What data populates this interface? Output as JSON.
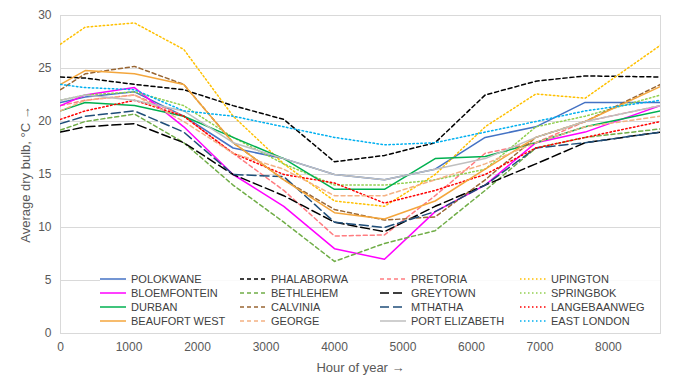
{
  "chart_data": {
    "type": "line",
    "x_label": "Hour of year",
    "y_label": "Average dry bulb, °C",
    "x": [
      0,
      360,
      1080,
      1800,
      2520,
      3260,
      4000,
      4730,
      5470,
      6200,
      6940,
      7660,
      8760
    ],
    "xlim": [
      0,
      8760
    ],
    "xticks": [
      0,
      1000,
      2000,
      3000,
      4000,
      5000,
      6000,
      7000,
      8000
    ],
    "ylim": [
      0,
      30
    ],
    "yticks": [
      0,
      5,
      10,
      15,
      20,
      25,
      30
    ],
    "grid": true,
    "legend": "bottom",
    "series": [
      {
        "name": "POLOKWANE",
        "color": "#4472c4",
        "line_style": "solid",
        "values": [
          21.8,
          22.3,
          22.8,
          20.5,
          17.5,
          16.5,
          15,
          14.5,
          15.5,
          18.5,
          19.5,
          21.8,
          21.8
        ]
      },
      {
        "name": "PHALABORWA",
        "color": "#000000",
        "line_style": "dashed",
        "values": [
          24.2,
          24.1,
          23.5,
          23,
          21.5,
          20.2,
          16.2,
          16.8,
          18,
          22.5,
          23.8,
          24.3,
          24.2
        ]
      },
      {
        "name": "PRETORIA",
        "color": "#ff7c80",
        "line_style": "dashed",
        "values": [
          21.5,
          22,
          22.5,
          20.5,
          17,
          13.5,
          9.2,
          9.3,
          13,
          17,
          18,
          20,
          21.5
        ]
      },
      {
        "name": "UPINGTON",
        "color": "#ffc000",
        "line_style": "dotted",
        "values": [
          27.3,
          28.9,
          29.3,
          26.8,
          20.5,
          16,
          12.5,
          12,
          15,
          19.5,
          22.6,
          22.2,
          27.2
        ]
      },
      {
        "name": "BLOEMFONTEIN",
        "color": "#ff00ff",
        "line_style": "solid",
        "values": [
          21.5,
          22.5,
          23.2,
          19.5,
          15,
          12,
          8,
          7,
          11.5,
          14,
          18,
          19,
          21.5
        ]
      },
      {
        "name": "BETHLEHEM",
        "color": "#70ad47",
        "line_style": "dashed",
        "values": [
          19.2,
          20,
          20.7,
          18,
          14,
          10.5,
          6.8,
          8.5,
          9.7,
          13.5,
          17.5,
          18.5,
          19.3
        ]
      },
      {
        "name": "GREYTOWN",
        "color": "#000000",
        "line_style": "longdash",
        "values": [
          19,
          19.5,
          19.8,
          18,
          15,
          13,
          10.5,
          9.6,
          12,
          14,
          16,
          18,
          19
        ]
      },
      {
        "name": "SPRINGBOK",
        "color": "#92d050",
        "line_style": "dotted",
        "values": [
          22,
          22.5,
          22.8,
          21.5,
          18.5,
          16,
          14,
          14,
          14.5,
          15.5,
          19.5,
          20.5,
          22.5
        ]
      },
      {
        "name": "DURBAN",
        "color": "#00b050",
        "line_style": "solid",
        "values": [
          21,
          21.8,
          21.5,
          20.5,
          18.5,
          16.5,
          13.6,
          13.6,
          16.5,
          16.7,
          18,
          19.5,
          21
        ]
      },
      {
        "name": "CALVINIA",
        "color": "#996633",
        "line_style": "dashed",
        "values": [
          23,
          24.5,
          25.2,
          23.5,
          18,
          14.5,
          11.7,
          10.7,
          11,
          14.5,
          18.5,
          20,
          23.5
        ]
      },
      {
        "name": "MTHATHA",
        "color": "#1f4e79",
        "line_style": "longdash",
        "values": [
          19.8,
          20.5,
          21,
          19,
          15,
          14.8,
          10.5,
          10,
          11.5,
          14,
          17.5,
          18,
          19
        ]
      },
      {
        "name": "LANGEBAANWEG",
        "color": "#ff0000",
        "line_style": "dotted",
        "values": [
          20.2,
          21,
          22,
          20.5,
          17,
          15,
          14.2,
          12.3,
          13.5,
          15,
          17.5,
          18.5,
          20
        ]
      },
      {
        "name": "BEAUFORT WEST",
        "color": "#f4a63c",
        "line_style": "solid",
        "values": [
          23.5,
          24.8,
          24.5,
          23.5,
          18,
          14.5,
          11.4,
          10.8,
          12.5,
          15.5,
          18.5,
          20,
          23.3
        ]
      },
      {
        "name": "GEORGE",
        "color": "#f4b183",
        "line_style": "dashed",
        "values": [
          21,
          22,
          22.5,
          20,
          17,
          15.5,
          13,
          13,
          14.5,
          16,
          18,
          19.5,
          20.5
        ]
      },
      {
        "name": "PORT ELIZABETH",
        "color": "#bfbfbf",
        "line_style": "solid",
        "values": [
          22,
          22.5,
          22,
          21,
          18,
          16.5,
          15,
          14.5,
          15.5,
          16.5,
          18.5,
          20,
          21.5
        ]
      },
      {
        "name": "EAST LONDON",
        "color": "#00b0f0",
        "line_style": "dotted",
        "values": [
          23.5,
          23.2,
          23,
          21,
          20.5,
          19.5,
          18.5,
          17.8,
          18,
          19,
          20,
          21,
          22
        ]
      }
    ]
  }
}
